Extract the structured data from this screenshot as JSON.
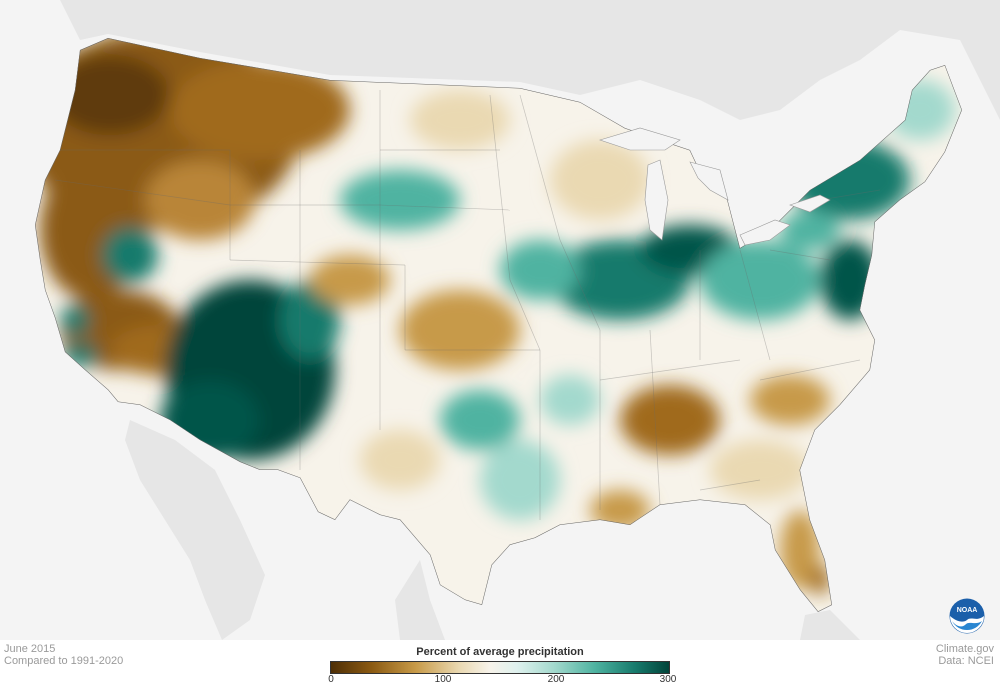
{
  "map": {
    "title": "Percent of average precipitation",
    "month": "June 2015",
    "baseline": "Compared to 1991-2020",
    "credit": "Climate.gov",
    "source": "Data: NCEI",
    "legend": {
      "ticks": [
        "0",
        "100",
        "200",
        "300"
      ],
      "tick_values": [
        0,
        100,
        200,
        300
      ],
      "range": [
        0,
        300
      ],
      "colors": [
        "#4e2f06",
        "#8b5a12",
        "#c79a48",
        "#ead9b2",
        "#f7f3ea",
        "#dff1ee",
        "#a3d9cd",
        "#4fb3a1",
        "#177a6c",
        "#01443a"
      ]
    },
    "logo": {
      "icon": "noaa-logo",
      "text": "NOAA"
    },
    "colors": {
      "land_bg": "#e6e6e6",
      "ocean_bg": "#f4f4f4",
      "dry": "#8b5a12",
      "wet": "#01443a",
      "normal": "#f7f3ea"
    }
  }
}
